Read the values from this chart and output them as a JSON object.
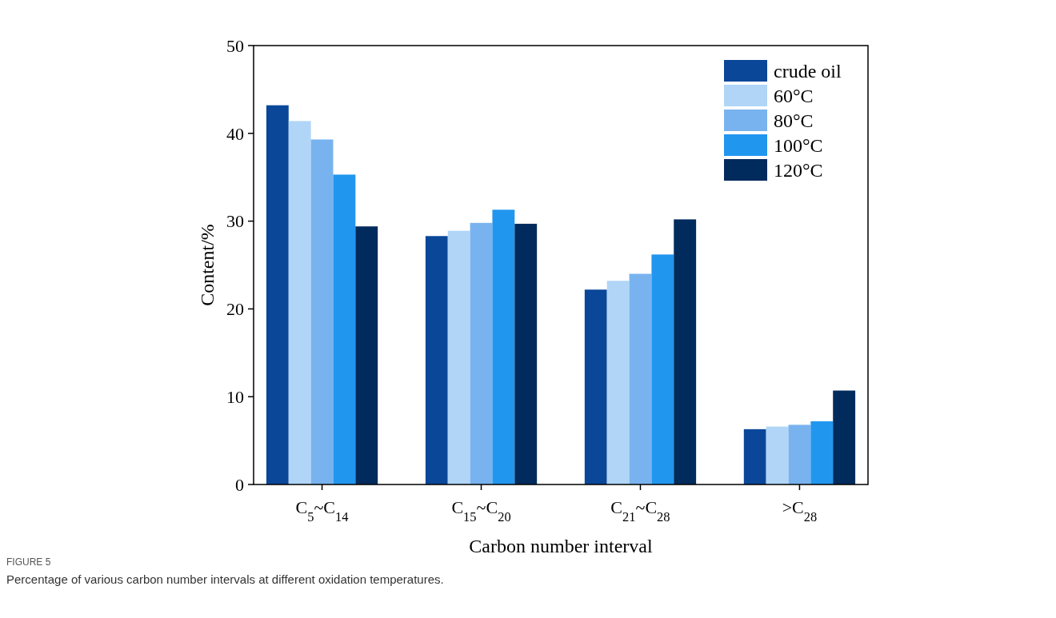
{
  "chart_data": {
    "type": "bar",
    "xlabel": "Carbon number interval",
    "ylabel": "Content/%",
    "categories": [
      "C$_{5}$~C$_{14}$",
      "C$_{15}$~C$_{20}$",
      "C$_{21}$~C$_{28}$",
      ">C$_{28}$"
    ],
    "series": [
      {
        "name": "crude oil",
        "color": "#0a4799",
        "values": [
          43.2,
          28.3,
          22.2,
          6.3
        ]
      },
      {
        "name": "60°C",
        "color": "#b0d5f7",
        "values": [
          41.4,
          28.9,
          23.2,
          6.6
        ]
      },
      {
        "name": "80°C",
        "color": "#78b3ef",
        "values": [
          39.3,
          29.8,
          24.0,
          6.8
        ]
      },
      {
        "name": "100°C",
        "color": "#2196ef",
        "values": [
          35.3,
          31.3,
          26.2,
          7.2
        ]
      },
      {
        "name": "120°C",
        "color": "#022b5d",
        "values": [
          29.4,
          29.7,
          30.2,
          10.7
        ]
      }
    ],
    "ylim": [
      0,
      50
    ],
    "yticks": [
      0,
      10,
      20,
      30,
      40,
      50
    ],
    "grid": false,
    "legend": "top right",
    "annotations": [
      "FIGURE 5",
      "Percentage of various carbon number intervals at different oxidation temperatures."
    ]
  }
}
